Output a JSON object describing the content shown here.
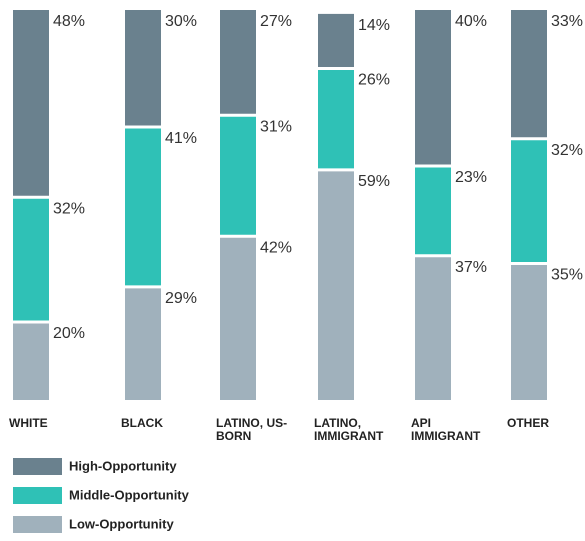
{
  "chart_data": {
    "type": "stacked_bar",
    "categories": [
      "WHITE",
      "BLACK",
      "LATINO, US-BORN",
      "LATINO, IMMIGRANT",
      "API IMMIGRANT",
      "OTHER"
    ],
    "ylim": [
      0,
      100
    ],
    "series": [
      {
        "name": "Low-Opportunity",
        "color": "#a0b1bc",
        "values": [
          20,
          29,
          42,
          59,
          37,
          35
        ],
        "value_labels": [
          "20%",
          "29%",
          "42%",
          "59%",
          "37%",
          "35%"
        ]
      },
      {
        "name": "Middle-Opportunity",
        "color": "#2fc1b6",
        "values": [
          32,
          41,
          31,
          26,
          23,
          32
        ],
        "value_labels": [
          "32%",
          "41%",
          "31%",
          "26%",
          "23%",
          "32%"
        ]
      },
      {
        "name": "High-Opportunity",
        "color": "#6a818e",
        "values": [
          48,
          30,
          27,
          14,
          40,
          33
        ],
        "value_labels": [
          "48%",
          "30%",
          "27%",
          "14%",
          "40%",
          "33%"
        ]
      }
    ]
  }
}
